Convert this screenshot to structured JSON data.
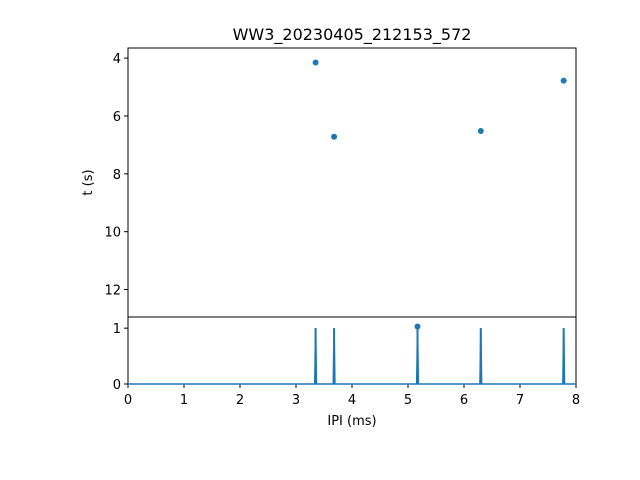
{
  "chart_data": [
    {
      "type": "scatter",
      "title": "WW3_20230405_212153_572",
      "ylabel": "t (s)",
      "xlim": [
        0,
        8
      ],
      "ylim": [
        12.95,
        3.65
      ],
      "y_inverted": true,
      "yticks": [
        4,
        6,
        8,
        10,
        12
      ],
      "yticklabels": [
        "4",
        "6",
        "8",
        "10",
        "12"
      ],
      "color": "#1f77b4",
      "points": [
        {
          "x": 3.35,
          "y": 4.15
        },
        {
          "x": 3.68,
          "y": 6.72
        },
        {
          "x": 6.3,
          "y": 6.52
        },
        {
          "x": 7.78,
          "y": 4.78
        },
        {
          "x": 5.17,
          "y": 13.28
        }
      ]
    },
    {
      "type": "line",
      "xlabel": "IPI (ms)",
      "xlim": [
        0,
        8
      ],
      "ylim": [
        0,
        1.2
      ],
      "xticks": [
        0,
        1,
        2,
        3,
        4,
        5,
        6,
        7,
        8
      ],
      "xticklabels": [
        "0",
        "1",
        "2",
        "3",
        "4",
        "5",
        "6",
        "7",
        "8"
      ],
      "yticks": [
        0,
        1
      ],
      "yticklabels": [
        "0",
        "1"
      ],
      "color": "#1f77b4",
      "spikes": [
        {
          "x": 3.35,
          "y": 1
        },
        {
          "x": 3.68,
          "y": 1
        },
        {
          "x": 5.17,
          "y": 1
        },
        {
          "x": 6.3,
          "y": 1
        },
        {
          "x": 7.78,
          "y": 1
        }
      ]
    }
  ]
}
